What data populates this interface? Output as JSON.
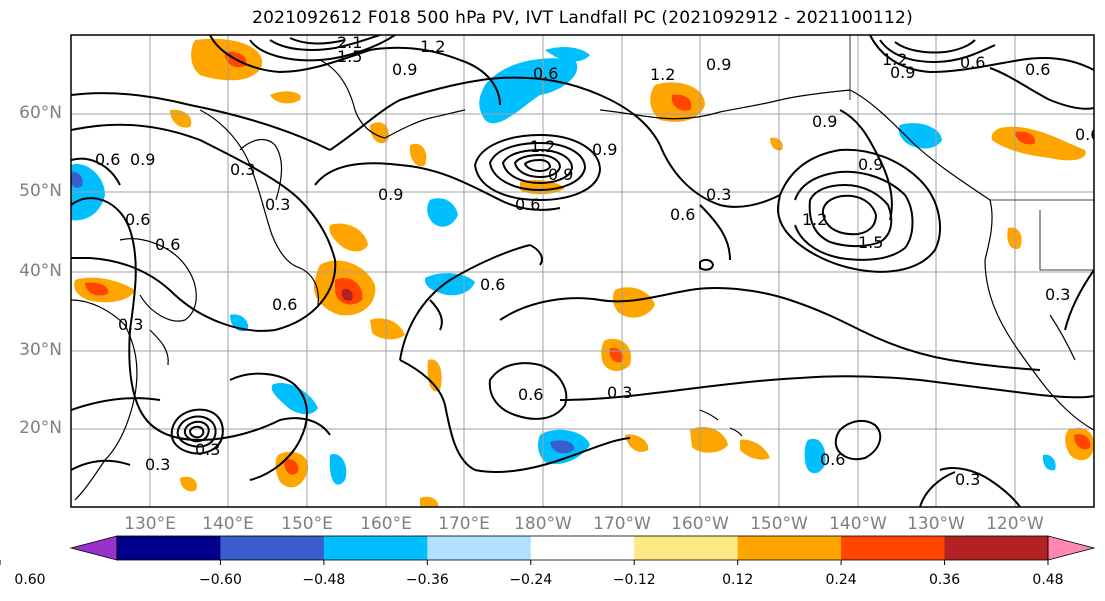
{
  "title": "2021092612 F018 500 hPa PV, IVT Landfall PC (2021092912 - 2021100112)",
  "latitude_labels": [
    "60°N",
    "50°N",
    "40°N",
    "30°N",
    "20°N"
  ],
  "longitude_labels": [
    "130°E",
    "140°E",
    "150°E",
    "160°E",
    "170°E",
    "180°W",
    "170°W",
    "160°W",
    "150°W",
    "140°W",
    "130°W",
    "120°W"
  ],
  "colorbar": {
    "ticks": [
      "−0.60",
      "−0.48",
      "−0.36",
      "−0.24",
      "−0.12",
      "0.12",
      "0.24",
      "0.36",
      "0.48",
      "0.60"
    ],
    "colors": [
      "#9932cc",
      "#00008b",
      "#3a5fcd",
      "#00bfff",
      "#b0e2ff",
      "#ffffff",
      "#ffe985",
      "#ffa500",
      "#ff4500",
      "#b22222",
      "#ff88b0"
    ]
  },
  "contour_labels": [
    "0.3",
    "0.6",
    "0.9",
    "1.2",
    "1.5",
    "2.1"
  ],
  "map_colors": {
    "contour": "#000000",
    "coastline": "#000000",
    "grid": "#a0a0a0",
    "frame": "#000000"
  }
}
